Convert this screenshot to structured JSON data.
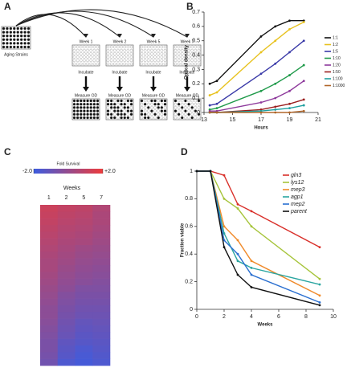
{
  "diagram": {
    "panel": "A",
    "source": "Aging Strains",
    "weeks": [
      "Week 1",
      "Week 2",
      "Week 5",
      "Week 7"
    ],
    "step": [
      "Incubate",
      "Incubate",
      "Incubate",
      "Incubate"
    ],
    "measure": [
      "Measure OD",
      "Measure OD",
      "Measure OD",
      "Measure OD"
    ]
  },
  "chart_data": [
    {
      "type": "line",
      "panel": "B",
      "x_label": "Hours",
      "y_label": "Optical density",
      "x": [
        13.4,
        13.9,
        17,
        18,
        19,
        20
      ],
      "xlim": [
        13,
        21
      ],
      "xticks": [
        13,
        15,
        17,
        19,
        21
      ],
      "ylim": [
        0,
        0.7
      ],
      "yticks": [
        0,
        0.1,
        0.2,
        0.3,
        0.4,
        0.5,
        0.6,
        0.7
      ],
      "legend": "right",
      "series": [
        {
          "name": "1:1",
          "color": "#111111",
          "values": [
            0.2,
            0.22,
            0.53,
            0.6,
            0.64,
            0.64
          ]
        },
        {
          "name": "1:2",
          "color": "#e8c21e",
          "values": [
            0.12,
            0.14,
            0.42,
            0.5,
            0.58,
            0.63
          ]
        },
        {
          "name": "1:5",
          "color": "#3a3aa8",
          "values": [
            0.05,
            0.06,
            0.27,
            0.34,
            0.42,
            0.5
          ]
        },
        {
          "name": "1:10",
          "color": "#1f9a4a",
          "values": [
            0.02,
            0.03,
            0.15,
            0.2,
            0.26,
            0.33
          ]
        },
        {
          "name": "1:20",
          "color": "#8e3a9c",
          "values": [
            0.01,
            0.01,
            0.07,
            0.1,
            0.15,
            0.22
          ]
        },
        {
          "name": "1:50",
          "color": "#9a1f1f",
          "values": [
            0,
            0,
            0.02,
            0.04,
            0.06,
            0.09
          ]
        },
        {
          "name": "1:100",
          "color": "#1fa0a0",
          "values": [
            0,
            0,
            0.01,
            0.02,
            0.03,
            0.05
          ]
        },
        {
          "name": "1:1000",
          "color": "#b0662a",
          "values": [
            0,
            0,
            0,
            0,
            0,
            0.01
          ]
        }
      ]
    },
    {
      "type": "heatmap",
      "panel": "C",
      "colorbar_title": "Fold Survival",
      "clim": [
        -2,
        2
      ],
      "cticks": [
        {
          "value": -2,
          "label": "-2.0"
        },
        {
          "value": 2,
          "label": "+2.0"
        }
      ],
      "colors": [
        "#3c5ce0",
        "#ee3b3b"
      ],
      "column_title": "Weeks",
      "columns": [
        "1",
        "2",
        "5",
        "7"
      ],
      "values": [
        [
          1.2,
          1.0,
          0.9,
          0.6
        ],
        [
          1.1,
          0.9,
          0.8,
          0.5
        ],
        [
          1.0,
          0.8,
          0.7,
          0.5
        ],
        [
          0.9,
          0.7,
          0.6,
          0.4
        ],
        [
          0.8,
          0.6,
          0.5,
          0.3
        ],
        [
          0.7,
          0.5,
          0.4,
          0.2
        ],
        [
          0.6,
          0.4,
          0.2,
          0.1
        ],
        [
          0.5,
          0.3,
          0.1,
          0.0
        ],
        [
          0.4,
          0.2,
          0.0,
          -0.1
        ],
        [
          0.4,
          0.1,
          -0.1,
          -0.2
        ],
        [
          0.3,
          0.0,
          -0.2,
          -0.3
        ],
        [
          0.2,
          -0.1,
          -0.3,
          -0.4
        ],
        [
          0.1,
          -0.2,
          -0.5,
          -0.5
        ],
        [
          0.0,
          -0.4,
          -0.6,
          -0.6
        ],
        [
          -0.1,
          -0.5,
          -0.7,
          -0.7
        ],
        [
          -0.2,
          -0.6,
          -0.8,
          -0.8
        ],
        [
          -0.2,
          -0.7,
          -0.9,
          -0.9
        ],
        [
          -0.3,
          -0.8,
          -1.1,
          -1.0
        ],
        [
          -0.4,
          -0.9,
          -1.2,
          -1.1
        ],
        [
          -0.5,
          -1.0,
          -1.3,
          -1.2
        ],
        [
          -0.6,
          -1.2,
          -1.4,
          -1.3
        ],
        [
          -0.6,
          -1.3,
          -1.6,
          -1.4
        ],
        [
          -0.7,
          -1.4,
          -1.7,
          -1.5
        ],
        [
          -0.8,
          -1.6,
          -1.8,
          -1.6
        ]
      ]
    },
    {
      "type": "line",
      "panel": "D",
      "x_label": "Weeks",
      "y_label": "Fraction viable",
      "x": [
        0,
        1,
        2,
        3,
        4,
        9
      ],
      "xlim": [
        0,
        10
      ],
      "xticks": [
        0,
        2,
        4,
        6,
        8,
        10
      ],
      "ylim": [
        0,
        1
      ],
      "yticks": [
        0,
        0.2,
        0.4,
        0.6,
        0.8,
        1
      ],
      "legend": "upper right",
      "series": [
        {
          "name": "gln3",
          "color": "#d9302a",
          "values": [
            1,
            1,
            0.97,
            0.76,
            0.71,
            0.45
          ]
        },
        {
          "name": "lys12",
          "color": "#a6c43a",
          "values": [
            1,
            1,
            0.8,
            0.73,
            0.6,
            0.22
          ]
        },
        {
          "name": "mep3",
          "color": "#f08a2a",
          "values": [
            1,
            1,
            0.6,
            0.5,
            0.35,
            0.1
          ]
        },
        {
          "name": "agp1",
          "color": "#2aa5a0",
          "values": [
            1,
            1,
            0.55,
            0.35,
            0.3,
            0.18
          ]
        },
        {
          "name": "mep2",
          "color": "#2a6fd0",
          "values": [
            1,
            1,
            0.5,
            0.4,
            0.25,
            0.05
          ]
        },
        {
          "name": "parent",
          "color": "#111111",
          "values": [
            1,
            1,
            0.45,
            0.25,
            0.16,
            0.03
          ]
        }
      ]
    }
  ]
}
